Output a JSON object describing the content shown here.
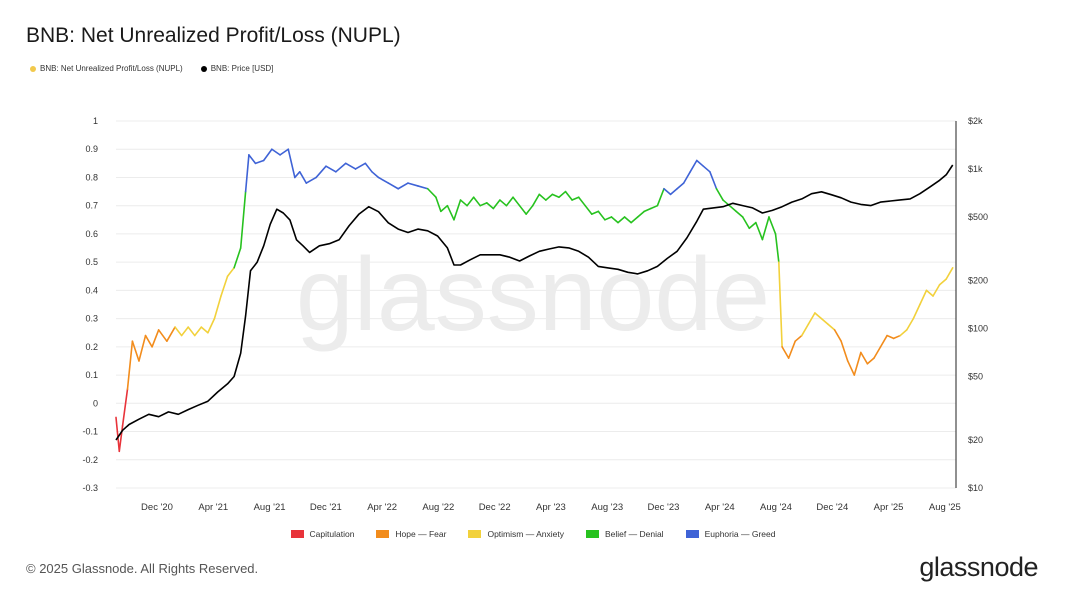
{
  "title": "BNB: Net Unrealized Profit/Loss (NUPL)",
  "legend_top": [
    {
      "label": "BNB: Net Unrealized Profit/Loss (NUPL)",
      "color": "#f2c94c"
    },
    {
      "label": "BNB: Price [USD]",
      "color": "#000000"
    }
  ],
  "watermark": "glassnode",
  "copyright": "© 2025 Glassnode. All Rights Reserved.",
  "brand": "glassnode",
  "chart_data": {
    "type": "line",
    "x_tick_labels": [
      "Dec '20",
      "Apr '21",
      "Aug '21",
      "Dec '21",
      "Apr '22",
      "Aug '22",
      "Dec '22",
      "Apr '23",
      "Aug '23",
      "Dec '23",
      "Apr '24",
      "Aug '24",
      "Dec '24",
      "Apr '25",
      "Aug '25"
    ],
    "y_left_ticks": [
      "1",
      "0.9",
      "0.8",
      "0.7",
      "0.6",
      "0.5",
      "0.4",
      "0.3",
      "0.2",
      "0.1",
      "0",
      "-0.1",
      "-0.2",
      "-0.3"
    ],
    "y_left_range": [
      -0.3,
      1
    ],
    "y_right_ticks": [
      "$2k",
      "$1k",
      "$500",
      "$200",
      "$100",
      "$50",
      "$20",
      "$10"
    ],
    "y_right_values": [
      2000,
      1000,
      500,
      200,
      100,
      50,
      20,
      10
    ],
    "y_right_scale": "log",
    "y_right_range": [
      10,
      2000
    ],
    "grid": true,
    "zones": [
      {
        "name": "Capitulation",
        "color": "#e8333a",
        "max": 0
      },
      {
        "name": "Hope — Fear",
        "color": "#f28c1c",
        "max": 0.25
      },
      {
        "name": "Optimism — Anxiety",
        "color": "#f2d13c",
        "max": 0.5
      },
      {
        "name": "Belief — Denial",
        "color": "#27c21f",
        "max": 0.75
      },
      {
        "name": "Euphoria — Greed",
        "color": "#3f63d6",
        "max": 1.0
      }
    ],
    "series": [
      {
        "name": "BNB: Net Unrealized Profit/Loss (NUPL)",
        "axis": "left",
        "points": [
          [
            0.0,
            -0.05
          ],
          [
            0.1,
            -0.17
          ],
          [
            0.2,
            -0.08
          ],
          [
            0.35,
            0.05
          ],
          [
            0.5,
            0.22
          ],
          [
            0.7,
            0.15
          ],
          [
            0.9,
            0.24
          ],
          [
            1.1,
            0.2
          ],
          [
            1.3,
            0.26
          ],
          [
            1.55,
            0.22
          ],
          [
            1.8,
            0.27
          ],
          [
            2.0,
            0.24
          ],
          [
            2.2,
            0.27
          ],
          [
            2.4,
            0.24
          ],
          [
            2.6,
            0.27
          ],
          [
            2.8,
            0.25
          ],
          [
            3.0,
            0.3
          ],
          [
            3.2,
            0.38
          ],
          [
            3.4,
            0.45
          ],
          [
            3.6,
            0.48
          ],
          [
            3.8,
            0.55
          ],
          [
            3.95,
            0.75
          ],
          [
            4.05,
            0.88
          ],
          [
            4.25,
            0.85
          ],
          [
            4.5,
            0.86
          ],
          [
            4.75,
            0.9
          ],
          [
            5.0,
            0.88
          ],
          [
            5.25,
            0.9
          ],
          [
            5.45,
            0.8
          ],
          [
            5.6,
            0.82
          ],
          [
            5.8,
            0.78
          ],
          [
            6.1,
            0.8
          ],
          [
            6.4,
            0.84
          ],
          [
            6.7,
            0.82
          ],
          [
            7.0,
            0.85
          ],
          [
            7.3,
            0.83
          ],
          [
            7.6,
            0.85
          ],
          [
            7.8,
            0.82
          ],
          [
            8.0,
            0.8
          ],
          [
            8.3,
            0.78
          ],
          [
            8.6,
            0.76
          ],
          [
            8.9,
            0.78
          ],
          [
            9.2,
            0.77
          ],
          [
            9.5,
            0.76
          ],
          [
            9.75,
            0.73
          ],
          [
            9.9,
            0.68
          ],
          [
            10.1,
            0.7
          ],
          [
            10.3,
            0.65
          ],
          [
            10.5,
            0.72
          ],
          [
            10.7,
            0.7
          ],
          [
            10.9,
            0.73
          ],
          [
            11.1,
            0.7
          ],
          [
            11.3,
            0.71
          ],
          [
            11.5,
            0.69
          ],
          [
            11.7,
            0.72
          ],
          [
            11.9,
            0.7
          ],
          [
            12.1,
            0.73
          ],
          [
            12.3,
            0.7
          ],
          [
            12.5,
            0.67
          ],
          [
            12.7,
            0.7
          ],
          [
            12.9,
            0.74
          ],
          [
            13.1,
            0.72
          ],
          [
            13.3,
            0.74
          ],
          [
            13.5,
            0.73
          ],
          [
            13.7,
            0.75
          ],
          [
            13.9,
            0.72
          ],
          [
            14.1,
            0.73
          ],
          [
            14.3,
            0.7
          ],
          [
            14.5,
            0.67
          ],
          [
            14.7,
            0.68
          ],
          [
            14.9,
            0.65
          ],
          [
            15.1,
            0.66
          ],
          [
            15.3,
            0.64
          ],
          [
            15.5,
            0.66
          ],
          [
            15.7,
            0.64
          ],
          [
            15.9,
            0.66
          ],
          [
            16.1,
            0.68
          ],
          [
            16.3,
            0.69
          ],
          [
            16.5,
            0.7
          ],
          [
            16.7,
            0.76
          ],
          [
            16.9,
            0.74
          ],
          [
            17.1,
            0.76
          ],
          [
            17.3,
            0.78
          ],
          [
            17.5,
            0.82
          ],
          [
            17.7,
            0.86
          ],
          [
            17.9,
            0.84
          ],
          [
            18.1,
            0.82
          ],
          [
            18.3,
            0.76
          ],
          [
            18.5,
            0.72
          ],
          [
            18.7,
            0.7
          ],
          [
            18.9,
            0.68
          ],
          [
            19.1,
            0.66
          ],
          [
            19.3,
            0.62
          ],
          [
            19.5,
            0.64
          ],
          [
            19.7,
            0.58
          ],
          [
            19.9,
            0.66
          ],
          [
            20.1,
            0.6
          ],
          [
            20.2,
            0.5
          ],
          [
            20.3,
            0.2
          ],
          [
            20.5,
            0.16
          ],
          [
            20.7,
            0.22
          ],
          [
            20.9,
            0.24
          ],
          [
            21.1,
            0.28
          ],
          [
            21.3,
            0.32
          ],
          [
            21.5,
            0.3
          ],
          [
            21.7,
            0.28
          ],
          [
            21.9,
            0.26
          ],
          [
            22.1,
            0.22
          ],
          [
            22.3,
            0.15
          ],
          [
            22.5,
            0.1
          ],
          [
            22.7,
            0.18
          ],
          [
            22.9,
            0.14
          ],
          [
            23.1,
            0.16
          ],
          [
            23.3,
            0.2
          ],
          [
            23.5,
            0.24
          ],
          [
            23.7,
            0.23
          ],
          [
            23.9,
            0.24
          ],
          [
            24.1,
            0.26
          ],
          [
            24.3,
            0.3
          ],
          [
            24.5,
            0.35
          ],
          [
            24.7,
            0.4
          ],
          [
            24.9,
            0.38
          ],
          [
            25.1,
            0.42
          ],
          [
            25.3,
            0.44
          ],
          [
            25.5,
            0.48
          ]
        ]
      },
      {
        "name": "BNB: Price [USD]",
        "axis": "right",
        "points": [
          [
            0.0,
            20
          ],
          [
            0.2,
            23
          ],
          [
            0.4,
            25
          ],
          [
            0.7,
            27
          ],
          [
            1.0,
            29
          ],
          [
            1.3,
            28
          ],
          [
            1.6,
            30
          ],
          [
            1.9,
            29
          ],
          [
            2.2,
            31
          ],
          [
            2.5,
            33
          ],
          [
            2.8,
            35
          ],
          [
            3.1,
            40
          ],
          [
            3.4,
            45
          ],
          [
            3.6,
            50
          ],
          [
            3.8,
            70
          ],
          [
            3.95,
            120
          ],
          [
            4.1,
            230
          ],
          [
            4.3,
            260
          ],
          [
            4.5,
            330
          ],
          [
            4.7,
            450
          ],
          [
            4.9,
            560
          ],
          [
            5.1,
            530
          ],
          [
            5.3,
            480
          ],
          [
            5.5,
            360
          ],
          [
            5.7,
            330
          ],
          [
            5.9,
            300
          ],
          [
            6.2,
            330
          ],
          [
            6.5,
            340
          ],
          [
            6.8,
            360
          ],
          [
            7.1,
            440
          ],
          [
            7.4,
            520
          ],
          [
            7.7,
            580
          ],
          [
            8.0,
            540
          ],
          [
            8.3,
            460
          ],
          [
            8.6,
            420
          ],
          [
            8.9,
            400
          ],
          [
            9.2,
            420
          ],
          [
            9.5,
            410
          ],
          [
            9.8,
            380
          ],
          [
            10.1,
            320
          ],
          [
            10.3,
            250
          ],
          [
            10.5,
            250
          ],
          [
            10.8,
            270
          ],
          [
            11.1,
            290
          ],
          [
            11.4,
            290
          ],
          [
            11.7,
            290
          ],
          [
            12.0,
            280
          ],
          [
            12.3,
            265
          ],
          [
            12.6,
            285
          ],
          [
            12.9,
            305
          ],
          [
            13.2,
            315
          ],
          [
            13.5,
            325
          ],
          [
            13.8,
            320
          ],
          [
            14.1,
            305
          ],
          [
            14.4,
            280
          ],
          [
            14.7,
            245
          ],
          [
            15.0,
            240
          ],
          [
            15.3,
            235
          ],
          [
            15.6,
            225
          ],
          [
            15.9,
            220
          ],
          [
            16.2,
            230
          ],
          [
            16.5,
            245
          ],
          [
            16.8,
            275
          ],
          [
            17.1,
            305
          ],
          [
            17.4,
            370
          ],
          [
            17.7,
            470
          ],
          [
            17.9,
            560
          ],
          [
            18.2,
            570
          ],
          [
            18.5,
            580
          ],
          [
            18.8,
            610
          ],
          [
            19.1,
            590
          ],
          [
            19.4,
            570
          ],
          [
            19.7,
            530
          ],
          [
            20.0,
            550
          ],
          [
            20.3,
            580
          ],
          [
            20.6,
            620
          ],
          [
            20.9,
            650
          ],
          [
            21.2,
            700
          ],
          [
            21.5,
            720
          ],
          [
            21.8,
            690
          ],
          [
            22.1,
            660
          ],
          [
            22.4,
            620
          ],
          [
            22.7,
            600
          ],
          [
            23.0,
            590
          ],
          [
            23.3,
            620
          ],
          [
            23.6,
            630
          ],
          [
            23.9,
            640
          ],
          [
            24.2,
            650
          ],
          [
            24.5,
            700
          ],
          [
            24.8,
            770
          ],
          [
            25.1,
            850
          ],
          [
            25.3,
            920
          ],
          [
            25.5,
            1060
          ]
        ]
      }
    ]
  }
}
